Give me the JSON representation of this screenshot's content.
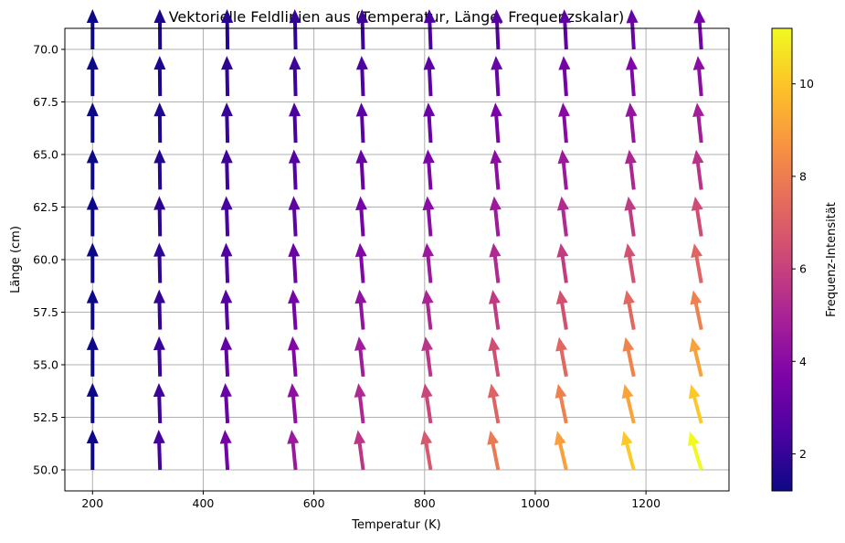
{
  "chart_data": {
    "type": "quiver",
    "title": "Vektorielle Feldlinien aus (Temperatur, Länge, Frequenzskalar)",
    "xlabel": "Temperatur (K)",
    "ylabel": "Länge (cm)",
    "xlim": [
      150,
      1350
    ],
    "ylim": [
      49,
      71
    ],
    "xticks": [
      "200",
      "400",
      "600",
      "800",
      "1000",
      "1200"
    ],
    "yticks": [
      "50.0",
      "52.5",
      "55.0",
      "57.5",
      "60.0",
      "62.5",
      "65.0",
      "67.5",
      "70.0"
    ],
    "grid": true,
    "colormap": "plasma",
    "colorbar": {
      "label": "Frequenz-Intensität",
      "range": [
        1.2,
        11.2
      ],
      "ticks": [
        "2",
        "4",
        "6",
        "8",
        "10"
      ]
    },
    "x": [
      200,
      322,
      444,
      567,
      689,
      811,
      933,
      1056,
      1178,
      1300
    ],
    "y": [
      50.0,
      52.22,
      54.44,
      56.67,
      58.89,
      61.11,
      63.33,
      65.56,
      67.78,
      70.0
    ],
    "magnitude": [
      [
        1.2,
        2.31,
        3.42,
        4.53,
        5.64,
        6.76,
        7.87,
        8.98,
        10.09,
        11.2
      ],
      [
        1.2,
        2.19,
        3.17,
        4.16,
        5.15,
        6.14,
        7.13,
        8.11,
        9.1,
        10.09
      ],
      [
        1.2,
        2.07,
        2.95,
        3.82,
        4.7,
        5.57,
        6.44,
        7.32,
        8.19,
        9.07
      ],
      [
        1.2,
        1.97,
        2.73,
        3.5,
        4.26,
        5.03,
        5.79,
        6.56,
        7.32,
        8.09
      ],
      [
        1.2,
        1.87,
        2.53,
        3.2,
        3.86,
        4.53,
        5.2,
        5.86,
        6.53,
        7.19
      ],
      [
        1.2,
        1.77,
        2.35,
        2.92,
        3.5,
        4.07,
        4.64,
        5.22,
        5.79,
        6.37
      ],
      [
        1.2,
        1.68,
        2.17,
        2.65,
        3.13,
        3.62,
        4.1,
        4.58,
        5.07,
        5.55
      ],
      [
        1.2,
        1.6,
        2.0,
        2.4,
        2.8,
        3.2,
        3.6,
        4.0,
        4.4,
        4.8
      ],
      [
        1.2,
        1.52,
        1.85,
        2.17,
        2.49,
        2.81,
        3.14,
        3.46,
        3.78,
        4.1
      ],
      [
        1.2,
        1.45,
        1.69,
        1.94,
        2.18,
        2.43,
        2.67,
        2.92,
        3.16,
        3.41
      ]
    ]
  }
}
